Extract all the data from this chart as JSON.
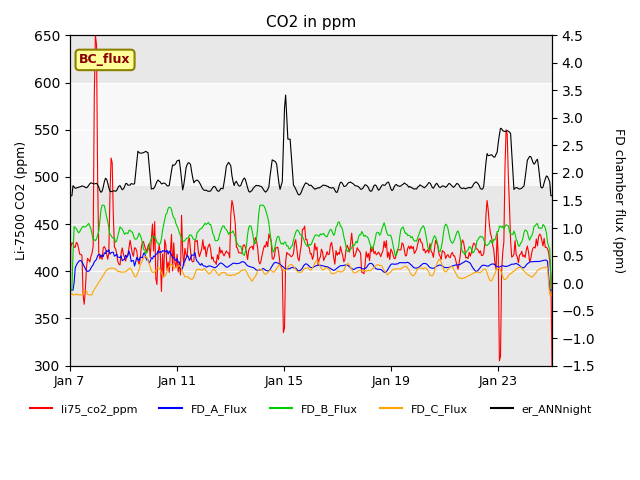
{
  "title": "CO2 in ppm",
  "ylabel_left": "Li-7500 CO2 (ppm)",
  "ylabel_right": "FD chamber flux (ppm)",
  "ylim_left": [
    300,
    650
  ],
  "ylim_right": [
    -1.5,
    4.5
  ],
  "yticks_left": [
    300,
    350,
    400,
    450,
    500,
    550,
    600,
    650
  ],
  "yticks_right": [
    -1.5,
    -1.0,
    -0.5,
    0.0,
    0.5,
    1.0,
    1.5,
    2.0,
    2.5,
    3.0,
    3.5,
    4.0,
    4.5
  ],
  "xticklabels": [
    "Jan 7",
    "Jan 11",
    "Jan 15",
    "Jan 19",
    "Jan 23"
  ],
  "xtick_pos": [
    0,
    4,
    8,
    12,
    16
  ],
  "n_days": 18,
  "colors": {
    "li75_co2_ppm": "#ff0000",
    "FD_A_Flux": "#0000ff",
    "FD_B_Flux": "#00cc00",
    "FD_C_Flux": "#ffa500",
    "er_ANNnight": "#000000"
  },
  "legend_labels": [
    "li75_co2_ppm",
    "FD_A_Flux",
    "FD_B_Flux",
    "FD_C_Flux",
    "er_ANNnight"
  ],
  "annotation_text": "BC_flux",
  "annotation_box_color": "#ffff99",
  "annotation_box_edge": "#8B8000",
  "shaded_band": [
    490,
    600
  ],
  "background_color": "#ffffff",
  "plot_bg_color": "#e8e8e8"
}
